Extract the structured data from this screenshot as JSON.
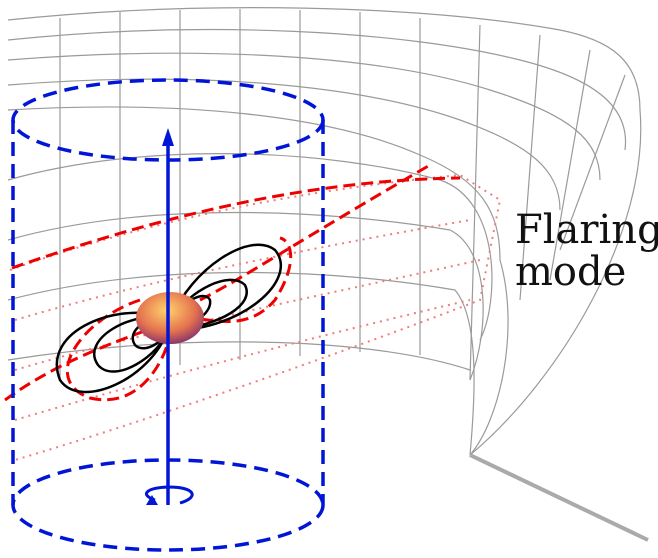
{
  "label": {
    "lines": [
      "Flaring",
      "mode"
    ]
  }
}
